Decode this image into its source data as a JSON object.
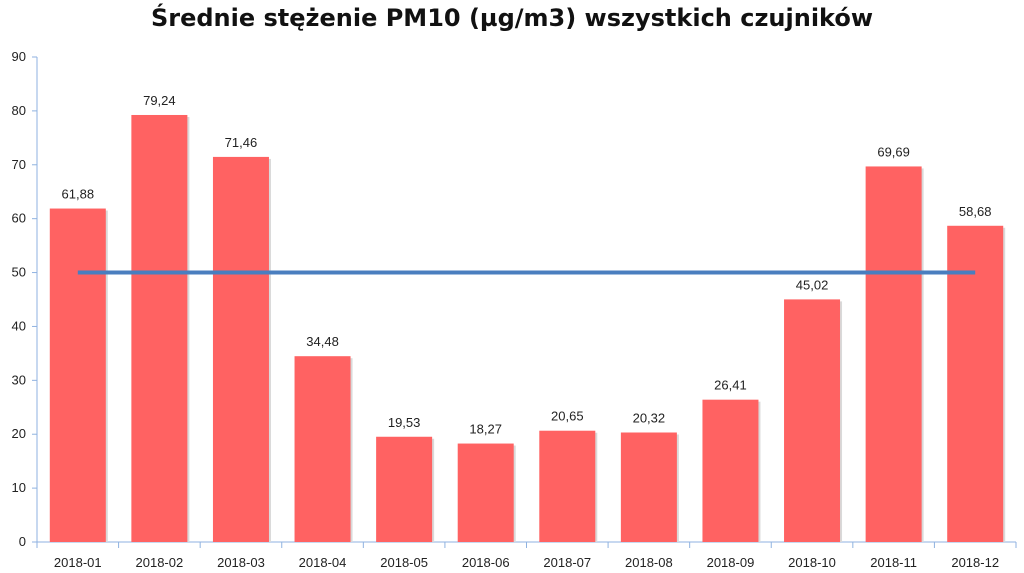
{
  "chart_data": {
    "type": "bar",
    "title": "Średnie stężenie PM10 (µg/m3) wszystkich czujników",
    "xlabel": "",
    "ylabel": "",
    "categories": [
      "2018-01",
      "2018-02",
      "2018-03",
      "2018-04",
      "2018-05",
      "2018-06",
      "2018-07",
      "2018-08",
      "2018-09",
      "2018-10",
      "2018-11",
      "2018-12"
    ],
    "series": [
      {
        "values": [
          61.88,
          79.24,
          71.46,
          34.48,
          19.53,
          18.27,
          20.65,
          20.32,
          26.41,
          45.02,
          69.69,
          58.68
        ],
        "labels": [
          "61,88",
          "79,24",
          "71,46",
          "34,48",
          "19,53",
          "18,27",
          "20,65",
          "20,32",
          "26,41",
          "45,02",
          "69,69",
          "58,68"
        ],
        "color": "#ff6262"
      }
    ],
    "reference_line": {
      "value": 50,
      "color": "#4a7ebf"
    },
    "ylim": [
      0,
      90
    ],
    "yticks": [
      0,
      10,
      20,
      30,
      40,
      50,
      60,
      70,
      80,
      90
    ],
    "grid": false,
    "legend": "none"
  }
}
